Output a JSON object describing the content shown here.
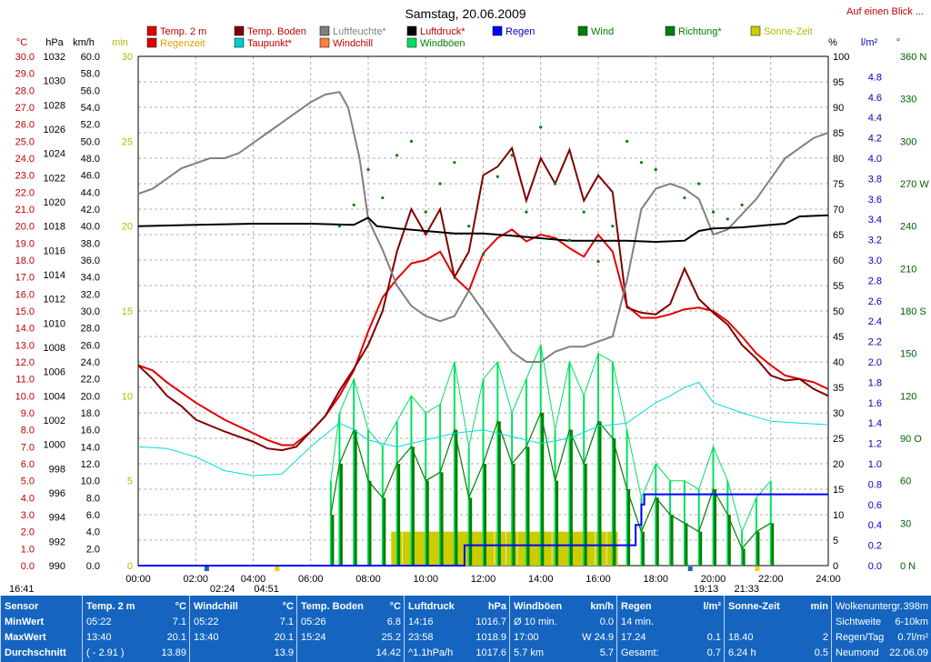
{
  "header": {
    "title": "Samstag, 20.06.2009",
    "link": "Auf einen Blick ..."
  },
  "units": {
    "temp": "°C",
    "pressure": "hPa",
    "speed": "km/h",
    "minutes": "min",
    "percent": "%",
    "rain": "l/m²",
    "degree": "°"
  },
  "legend": [
    {
      "label": "Temp. 2 m",
      "color": "#e00000"
    },
    {
      "label": "Temp. Boden",
      "color": "#800000"
    },
    {
      "label": "Luftfeuchte*",
      "color": "#808080"
    },
    {
      "label": "Luftdruck*",
      "color": "#000000"
    },
    {
      "label": "Regen",
      "color": "#0000ff"
    },
    {
      "label": "Wind",
      "color": "#008000"
    },
    {
      "label": "Richtung*",
      "color": "#008000"
    },
    {
      "label": "Sonne-Zeit",
      "color": "#cccc00"
    },
    {
      "label": "Regenzeit",
      "color": "#e00000"
    },
    {
      "label": "Taupunkt*",
      "color": "#00cccc"
    },
    {
      "label": "Windchill",
      "color": "#ff8040"
    },
    {
      "label": "Windböen",
      "color": "#00e060"
    }
  ],
  "colors": {
    "temp2m": "#e00000",
    "tempBoden": "#800000",
    "humidity": "#808080",
    "pressure": "#000000",
    "rain": "#0000ff",
    "wind": "#008000",
    "gust": "#00e060",
    "direction": "#008000",
    "sun": "#cccc00",
    "dewpoint": "#00dddd"
  },
  "events": {
    "sunrise": "04:51",
    "sunset": "21:33",
    "start": "16:41",
    "moonrise": "02:24",
    "moonset": "19:13"
  },
  "chart_data": {
    "type": "line",
    "x_unit": "hours",
    "xlim": [
      0,
      24
    ],
    "x_ticks": [
      "00:00",
      "02:00",
      "04:00",
      "06:00",
      "08:00",
      "10:00",
      "12:00",
      "14:00",
      "16:00",
      "18:00",
      "20:00",
      "22:00",
      "24:00"
    ],
    "axes": {
      "temp": {
        "ylim": [
          0,
          30
        ],
        "ticks": [
          "30.0",
          "29.0",
          "28.0",
          "27.0",
          "26.0",
          "25.0",
          "24.0",
          "23.0",
          "22.0",
          "21.0",
          "20.0",
          "19.0",
          "18.0",
          "17.0",
          "16.0",
          "15.0",
          "14.0",
          "13.0",
          "12.0",
          "11.0",
          "10.0",
          "9.0",
          "8.0",
          "7.0",
          "6.0",
          "5.0",
          "4.0",
          "3.0",
          "2.0",
          "1.0",
          "0.0"
        ]
      },
      "pressure": {
        "ylim": [
          990,
          1032
        ],
        "ticks": [
          "1032",
          "1030",
          "1028",
          "1026",
          "1024",
          "1022",
          "1020",
          "1018",
          "1016",
          "1014",
          "1012",
          "1010",
          "1008",
          "1006",
          "1004",
          "1002",
          "1000",
          "998",
          "996",
          "994",
          "992",
          "990"
        ]
      },
      "speed": {
        "ylim": [
          0,
          60
        ],
        "ticks": [
          "60.0",
          "58.0",
          "56.0",
          "54.0",
          "52.0",
          "50.0",
          "48.0",
          "46.0",
          "44.0",
          "42.0",
          "40.0",
          "38.0",
          "36.0",
          "34.0",
          "32.0",
          "30.0",
          "28.0",
          "26.0",
          "24.0",
          "22.0",
          "20.0",
          "18.0",
          "16.0",
          "14.0",
          "12.0",
          "10.0",
          "8.0",
          "6.0",
          "4.0",
          "2.0",
          "0.0"
        ]
      },
      "minutes": {
        "ylim": [
          0,
          30
        ],
        "ticks": [
          "30",
          "25",
          "20",
          "15",
          "10",
          "5",
          "0"
        ]
      },
      "percent": {
        "ylim": [
          0,
          100
        ],
        "ticks": [
          "100",
          "95",
          "90",
          "85",
          "80",
          "75",
          "70",
          "65",
          "60",
          "55",
          "50",
          "45",
          "40",
          "35",
          "30",
          "25",
          "20",
          "15",
          "10",
          "5",
          "0"
        ]
      },
      "rain": {
        "ylim": [
          0,
          5
        ],
        "ticks": [
          "4.8",
          "4.6",
          "4.4",
          "4.2",
          "4.0",
          "3.8",
          "3.6",
          "3.4",
          "3.2",
          "3.0",
          "2.8",
          "2.6",
          "2.4",
          "2.2",
          "2.0",
          "1.8",
          "1.6",
          "1.4",
          "1.2",
          "1.0",
          "0.8",
          "0.6",
          "0.4",
          "0.2",
          "0.0"
        ]
      },
      "direction": {
        "ylim": [
          0,
          360
        ],
        "ticks": [
          "360 N",
          "330",
          "300",
          "270 W",
          "240",
          "210",
          "180 S",
          "150",
          "120",
          "90 O",
          "60",
          "30",
          "0 N"
        ]
      }
    },
    "series": [
      {
        "name": "Temp. 2 m",
        "axis": "temp",
        "color": "#e00000",
        "x": [
          0,
          0.5,
          1,
          1.5,
          2,
          3,
          4,
          4.5,
          5,
          5.4,
          6,
          6.5,
          7,
          7.5,
          8,
          8.5,
          9,
          9.5,
          10,
          10.5,
          11,
          11.5,
          12,
          12.5,
          13,
          13.5,
          14,
          14.5,
          15,
          15.5,
          16,
          16.5,
          17,
          17.5,
          18,
          18.5,
          19,
          19.5,
          20,
          20.5,
          21,
          21.5,
          22,
          22.5,
          23,
          23.5,
          24
        ],
        "y": [
          11.8,
          11.5,
          10.8,
          10.2,
          9.6,
          8.6,
          7.8,
          7.4,
          7.1,
          7.1,
          7.9,
          8.8,
          10.0,
          11.5,
          13.8,
          15.8,
          16.9,
          17.8,
          18.0,
          18.5,
          17.0,
          16.2,
          18.4,
          19.3,
          19.8,
          19.1,
          19.5,
          19.3,
          18.7,
          18.2,
          19.5,
          18.5,
          15.3,
          14.6,
          14.6,
          14.8,
          15.1,
          15.2,
          15.0,
          14.4,
          13.5,
          12.5,
          11.8,
          11.2,
          11.0,
          10.8,
          10.4
        ]
      },
      {
        "name": "Temp. Boden",
        "axis": "temp",
        "color": "#800000",
        "x": [
          0,
          0.5,
          1,
          1.5,
          2,
          3,
          4,
          4.5,
          5,
          5.5,
          6,
          6.5,
          7,
          7.5,
          8,
          8.5,
          9,
          9.5,
          10,
          10.5,
          11,
          11.5,
          12,
          12.5,
          13,
          13.5,
          14,
          14.5,
          15,
          15.5,
          16,
          16.5,
          17,
          17.5,
          18,
          18.5,
          19,
          19.5,
          20,
          20.5,
          21,
          21.5,
          22,
          22.5,
          23,
          23.5,
          24
        ],
        "y": [
          11.8,
          11.0,
          10.0,
          9.4,
          8.6,
          7.9,
          7.3,
          6.9,
          6.8,
          7.0,
          7.9,
          8.8,
          10.3,
          11.6,
          13.0,
          15.0,
          18.5,
          21.0,
          19.5,
          21.0,
          17.0,
          18.5,
          23.0,
          23.5,
          24.6,
          21.5,
          24.0,
          22.5,
          24.5,
          21.5,
          23.0,
          22.0,
          15.2,
          14.9,
          14.8,
          15.4,
          17.5,
          15.7,
          14.9,
          14.2,
          13.0,
          12.2,
          11.2,
          10.9,
          11.0,
          10.4,
          10.0
        ]
      },
      {
        "name": "Luftfeuchte*",
        "axis": "percent",
        "color": "#808080",
        "x": [
          0,
          0.5,
          1,
          1.5,
          2,
          2.5,
          3,
          3.5,
          4,
          4.5,
          5,
          5.5,
          6,
          6.5,
          7,
          7.3,
          7.7,
          8,
          8.5,
          9,
          9.5,
          10,
          10.5,
          11,
          11.5,
          12,
          12.5,
          13,
          13.5,
          14,
          14.5,
          15,
          15.5,
          16,
          16.5,
          17,
          17.5,
          18,
          18.5,
          19,
          19.5,
          20,
          20.5,
          21,
          21.5,
          22,
          22.5,
          23,
          23.5,
          24
        ],
        "y": [
          73,
          74,
          76,
          78,
          79,
          80,
          80,
          81,
          83,
          85,
          87,
          89,
          91,
          92.5,
          93,
          90,
          80,
          68,
          62,
          55,
          51,
          49,
          48,
          49,
          54,
          50,
          46,
          42,
          40,
          40,
          42,
          43,
          43,
          44,
          45,
          56,
          70,
          74,
          75,
          74,
          72,
          65,
          66,
          69,
          72,
          76,
          80,
          82,
          84,
          85
        ]
      },
      {
        "name": "Luftdruck*",
        "axis": "pressure",
        "color": "#000000",
        "x": [
          0,
          2,
          4,
          6,
          7.5,
          8,
          8.3,
          9,
          10,
          11,
          12,
          13,
          14,
          15,
          16,
          17,
          18,
          19,
          19.5,
          20,
          21,
          22,
          22.5,
          23,
          24
        ],
        "y": [
          1018.0,
          1018.1,
          1018.2,
          1018.2,
          1018.1,
          1018.7,
          1018.0,
          1017.8,
          1017.6,
          1017.4,
          1017.4,
          1017.2,
          1017.0,
          1016.8,
          1016.8,
          1016.8,
          1016.7,
          1016.8,
          1017.6,
          1017.8,
          1017.9,
          1018.1,
          1018.2,
          1018.8,
          1018.9
        ]
      },
      {
        "name": "Taupunkt*",
        "axis": "temp",
        "color": "#00dddd",
        "x": [
          0,
          1,
          2,
          3,
          4,
          5,
          6,
          7,
          7.5,
          8,
          8.5,
          9,
          9.5,
          10,
          11,
          12,
          13,
          14,
          15,
          16,
          17,
          17.5,
          18,
          18.5,
          19,
          19.5,
          20,
          21,
          22,
          23,
          24
        ],
        "y": [
          7.0,
          6.9,
          6.4,
          5.6,
          5.3,
          5.4,
          7.0,
          8.4,
          8.0,
          7.4,
          7.2,
          7.0,
          7.2,
          7.4,
          7.8,
          8.0,
          7.6,
          7.2,
          7.5,
          8.2,
          8.4,
          9.0,
          9.6,
          10.0,
          10.5,
          10.8,
          9.6,
          9.0,
          8.5,
          8.4,
          8.3
        ]
      },
      {
        "name": "Regen",
        "axis": "rain",
        "color": "#0000ff",
        "x": [
          0,
          11.3,
          11.35,
          17.2,
          17.3,
          17.5,
          17.6,
          24
        ],
        "y": [
          0,
          0,
          0.2,
          0.2,
          0.4,
          0.6,
          0.7,
          0.7
        ]
      }
    ],
    "wind_points": {
      "name": "Wind",
      "axis": "speed",
      "color": "#008000",
      "x": [
        6.7,
        7,
        7.5,
        8,
        8.5,
        9,
        9.5,
        10,
        10.5,
        11,
        11.5,
        12,
        12.5,
        13,
        13.5,
        14,
        14.5,
        15,
        15.5,
        16,
        16.5,
        17,
        17.5,
        18,
        18.5,
        19,
        19.5,
        20,
        20.5,
        21,
        21.5,
        22
      ],
      "y": [
        6,
        12,
        16,
        10,
        8,
        12,
        14,
        10,
        11,
        16,
        8,
        12,
        17,
        12,
        14,
        18,
        10,
        16,
        12,
        17,
        15,
        9,
        4,
        8,
        6,
        5,
        4,
        9,
        6,
        2,
        4,
        5
      ]
    },
    "gust_points": {
      "name": "Windböen",
      "axis": "speed",
      "color": "#00e060",
      "x": [
        6.7,
        7,
        7.5,
        8,
        8.5,
        9,
        9.5,
        10,
        10.5,
        11,
        11.5,
        12,
        12.5,
        13,
        13.5,
        14,
        14.5,
        15,
        15.5,
        16,
        16.5,
        17,
        17.5,
        18,
        18.5,
        19,
        19.5,
        20,
        20.5,
        21,
        21.5,
        22
      ],
      "y": [
        10,
        18,
        22,
        16,
        14,
        17,
        20,
        18,
        19,
        24,
        14,
        22,
        24,
        18,
        22,
        26,
        16,
        24,
        20,
        25,
        24,
        16,
        8,
        12,
        10,
        10,
        9,
        14,
        10,
        4,
        8,
        10
      ]
    },
    "direction_points": {
      "name": "Richtung*",
      "axis": "direction",
      "color": "#008000",
      "x": [
        7,
        7.5,
        8,
        8.5,
        9,
        9.5,
        10,
        10.5,
        11,
        11.5,
        12,
        12.5,
        13,
        13.5,
        14,
        14.5,
        15,
        15.5,
        16,
        16.5,
        17,
        17.5,
        18,
        19,
        19.5,
        20,
        20.5,
        21
      ],
      "y": [
        240,
        255,
        280,
        260,
        290,
        300,
        250,
        270,
        285,
        240,
        220,
        275,
        290,
        250,
        310,
        270,
        230,
        250,
        215,
        240,
        300,
        285,
        280,
        260,
        270,
        250,
        245,
        255
      ]
    },
    "sun_bars": {
      "name": "Sonne-Zeit",
      "axis": "minutes",
      "color": "#cccc00",
      "x": [
        8.8,
        9.2,
        9.6,
        10.0,
        10.3,
        10.6,
        11.0,
        11.2,
        11.6,
        12.0,
        12.4,
        12.8,
        13.2,
        13.6,
        14.0,
        14.4,
        14.7,
        15.1,
        15.5,
        15.9,
        16.3
      ],
      "y": [
        2,
        2,
        2,
        2,
        2,
        2,
        2,
        2,
        2,
        2,
        2,
        2,
        2,
        2,
        2,
        2,
        2,
        2,
        2,
        2,
        2
      ]
    }
  },
  "stats": {
    "sensor": {
      "title": "Sensor",
      "min": "MinWert",
      "max": "MaxWert",
      "avg": "Durchschnitt"
    },
    "temp2m": {
      "title": "Temp. 2 m",
      "unit": "°C",
      "min_time": "05:22",
      "min": "7.1",
      "max_time": "13:40",
      "max": "20.1",
      "avg_note": "( - 2.91 )",
      "avg": "13.89"
    },
    "windchill": {
      "title": "Windchill",
      "unit": "°C",
      "min_time": "05:22",
      "min": "7.1",
      "max_time": "13:40",
      "max": "20.1",
      "avg_note": "",
      "avg": "13.9"
    },
    "tempboden": {
      "title": "Temp. Boden",
      "unit": "°C",
      "min_time": "05:26",
      "min": "6.8",
      "max_time": "15:24",
      "max": "25.2",
      "avg_note": "",
      "avg": "14.42"
    },
    "pressure": {
      "title": "Luftdruck",
      "unit": "hPa",
      "min_time": "14:16",
      "min": "1016.7",
      "max_time": "23:58",
      "max": "1018.9",
      "avg_note": "^1.1hPa/h",
      "avg": "1017.6"
    },
    "gust": {
      "title": "Windböen",
      "unit": "km/h",
      "min_time": "Ø 10 min.",
      "min": "0.0",
      "max_time": "17:00",
      "max": "W 24.9",
      "avg_note": "5.7 km",
      "avg": "5.7"
    },
    "rain": {
      "title": "Regen",
      "unit": "l/m²",
      "min_time": "14 min.",
      "min": "",
      "max_time": "17.24",
      "max": "0.1",
      "avg_note": "Gesamt:",
      "avg": "0.7"
    },
    "sun": {
      "title": "Sonne-Zeit",
      "unit": "min",
      "min_time": "",
      "min": "",
      "max_time": "18.40",
      "max": "2",
      "avg_note": "6.24 h",
      "avg": "0.5"
    },
    "info": {
      "l1": "Wolkenuntergr.",
      "v1": "398m",
      "l2": "Sichtweite",
      "v2": "6-10km",
      "l3": "Regen/Tag",
      "v3": "0.7l/m²",
      "l4": "Neumond",
      "v4": "22.06.09"
    }
  }
}
